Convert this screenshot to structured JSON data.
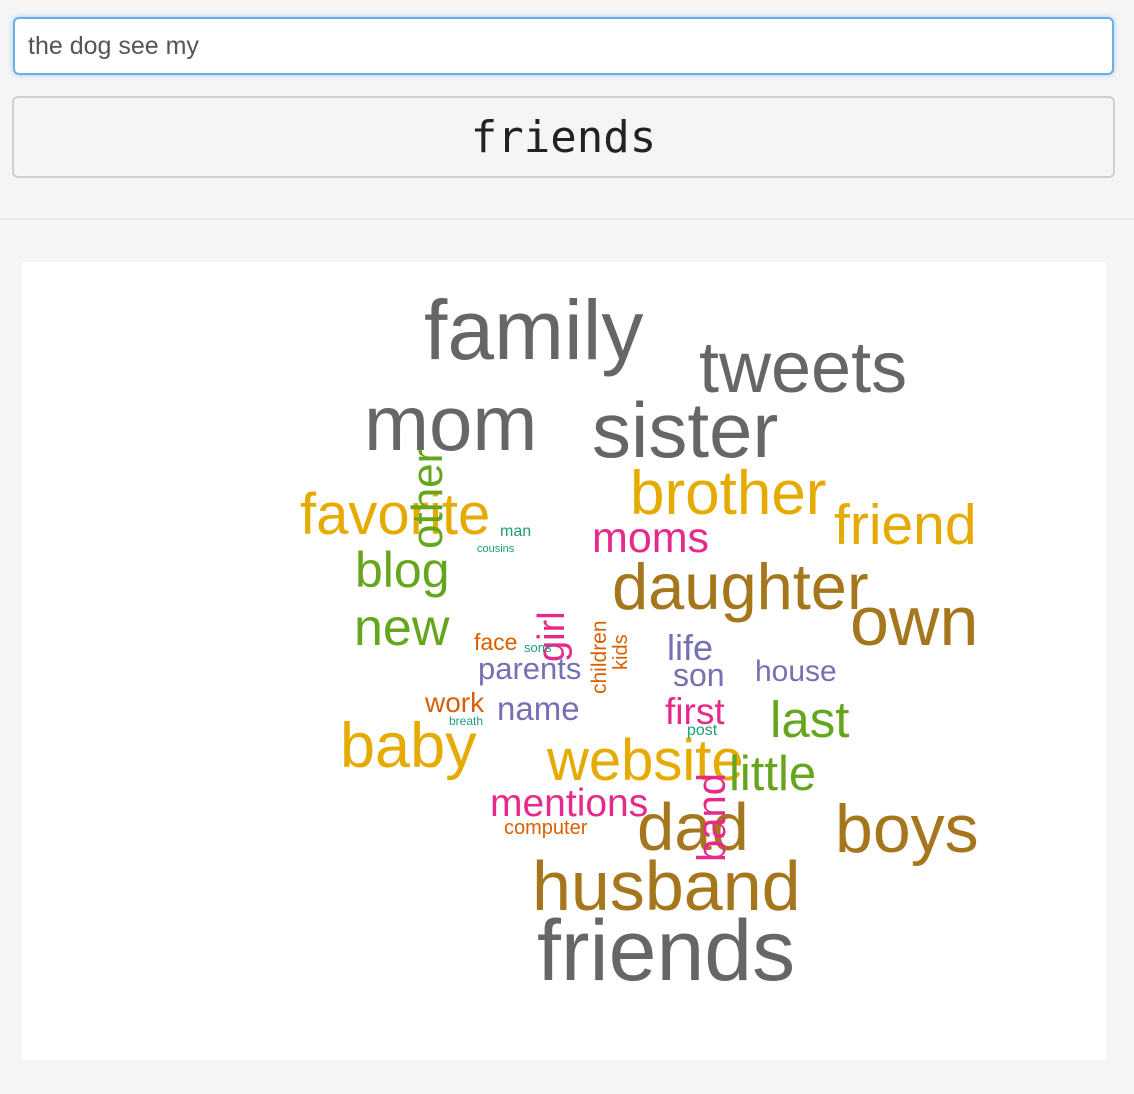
{
  "input": {
    "value": "the dog see my"
  },
  "prediction": {
    "label": "friends"
  },
  "colors": {
    "gray": "#666666",
    "brown": "#a6761d",
    "gold": "#e6ab02",
    "green": "#66a61e",
    "pink": "#e7298a",
    "purple": "#7570b3",
    "orange": "#d95f02",
    "teal": "#1b9e77"
  },
  "wordcloud": {
    "words": [
      {
        "text": "family",
        "color": "gray"
      },
      {
        "text": "tweets",
        "color": "gray"
      },
      {
        "text": "mom",
        "color": "gray"
      },
      {
        "text": "sister",
        "color": "gray"
      },
      {
        "text": "friends",
        "color": "gray"
      },
      {
        "text": "brother",
        "color": "gold"
      },
      {
        "text": "favorite",
        "color": "gold"
      },
      {
        "text": "friend",
        "color": "gold"
      },
      {
        "text": "baby",
        "color": "gold"
      },
      {
        "text": "website",
        "color": "gold"
      },
      {
        "text": "daughter",
        "color": "brown"
      },
      {
        "text": "own",
        "color": "brown"
      },
      {
        "text": "dad",
        "color": "brown"
      },
      {
        "text": "boys",
        "color": "brown"
      },
      {
        "text": "husband",
        "color": "brown"
      },
      {
        "text": "blog",
        "color": "green"
      },
      {
        "text": "new",
        "color": "green"
      },
      {
        "text": "other",
        "color": "green"
      },
      {
        "text": "last",
        "color": "green"
      },
      {
        "text": "little",
        "color": "green"
      },
      {
        "text": "moms",
        "color": "pink"
      },
      {
        "text": "girl",
        "color": "pink"
      },
      {
        "text": "first",
        "color": "pink"
      },
      {
        "text": "mentions",
        "color": "pink"
      },
      {
        "text": "band",
        "color": "pink"
      },
      {
        "text": "parents",
        "color": "purple"
      },
      {
        "text": "name",
        "color": "purple"
      },
      {
        "text": "life",
        "color": "purple"
      },
      {
        "text": "son",
        "color": "purple"
      },
      {
        "text": "house",
        "color": "purple"
      },
      {
        "text": "face",
        "color": "orange"
      },
      {
        "text": "work",
        "color": "orange"
      },
      {
        "text": "children",
        "color": "orange"
      },
      {
        "text": "kids",
        "color": "orange"
      },
      {
        "text": "computer",
        "color": "orange"
      },
      {
        "text": "man",
        "color": "teal"
      },
      {
        "text": "cousins",
        "color": "teal"
      },
      {
        "text": "sons",
        "color": "teal"
      },
      {
        "text": "breath",
        "color": "teal"
      },
      {
        "text": "post",
        "color": "teal"
      }
    ]
  }
}
